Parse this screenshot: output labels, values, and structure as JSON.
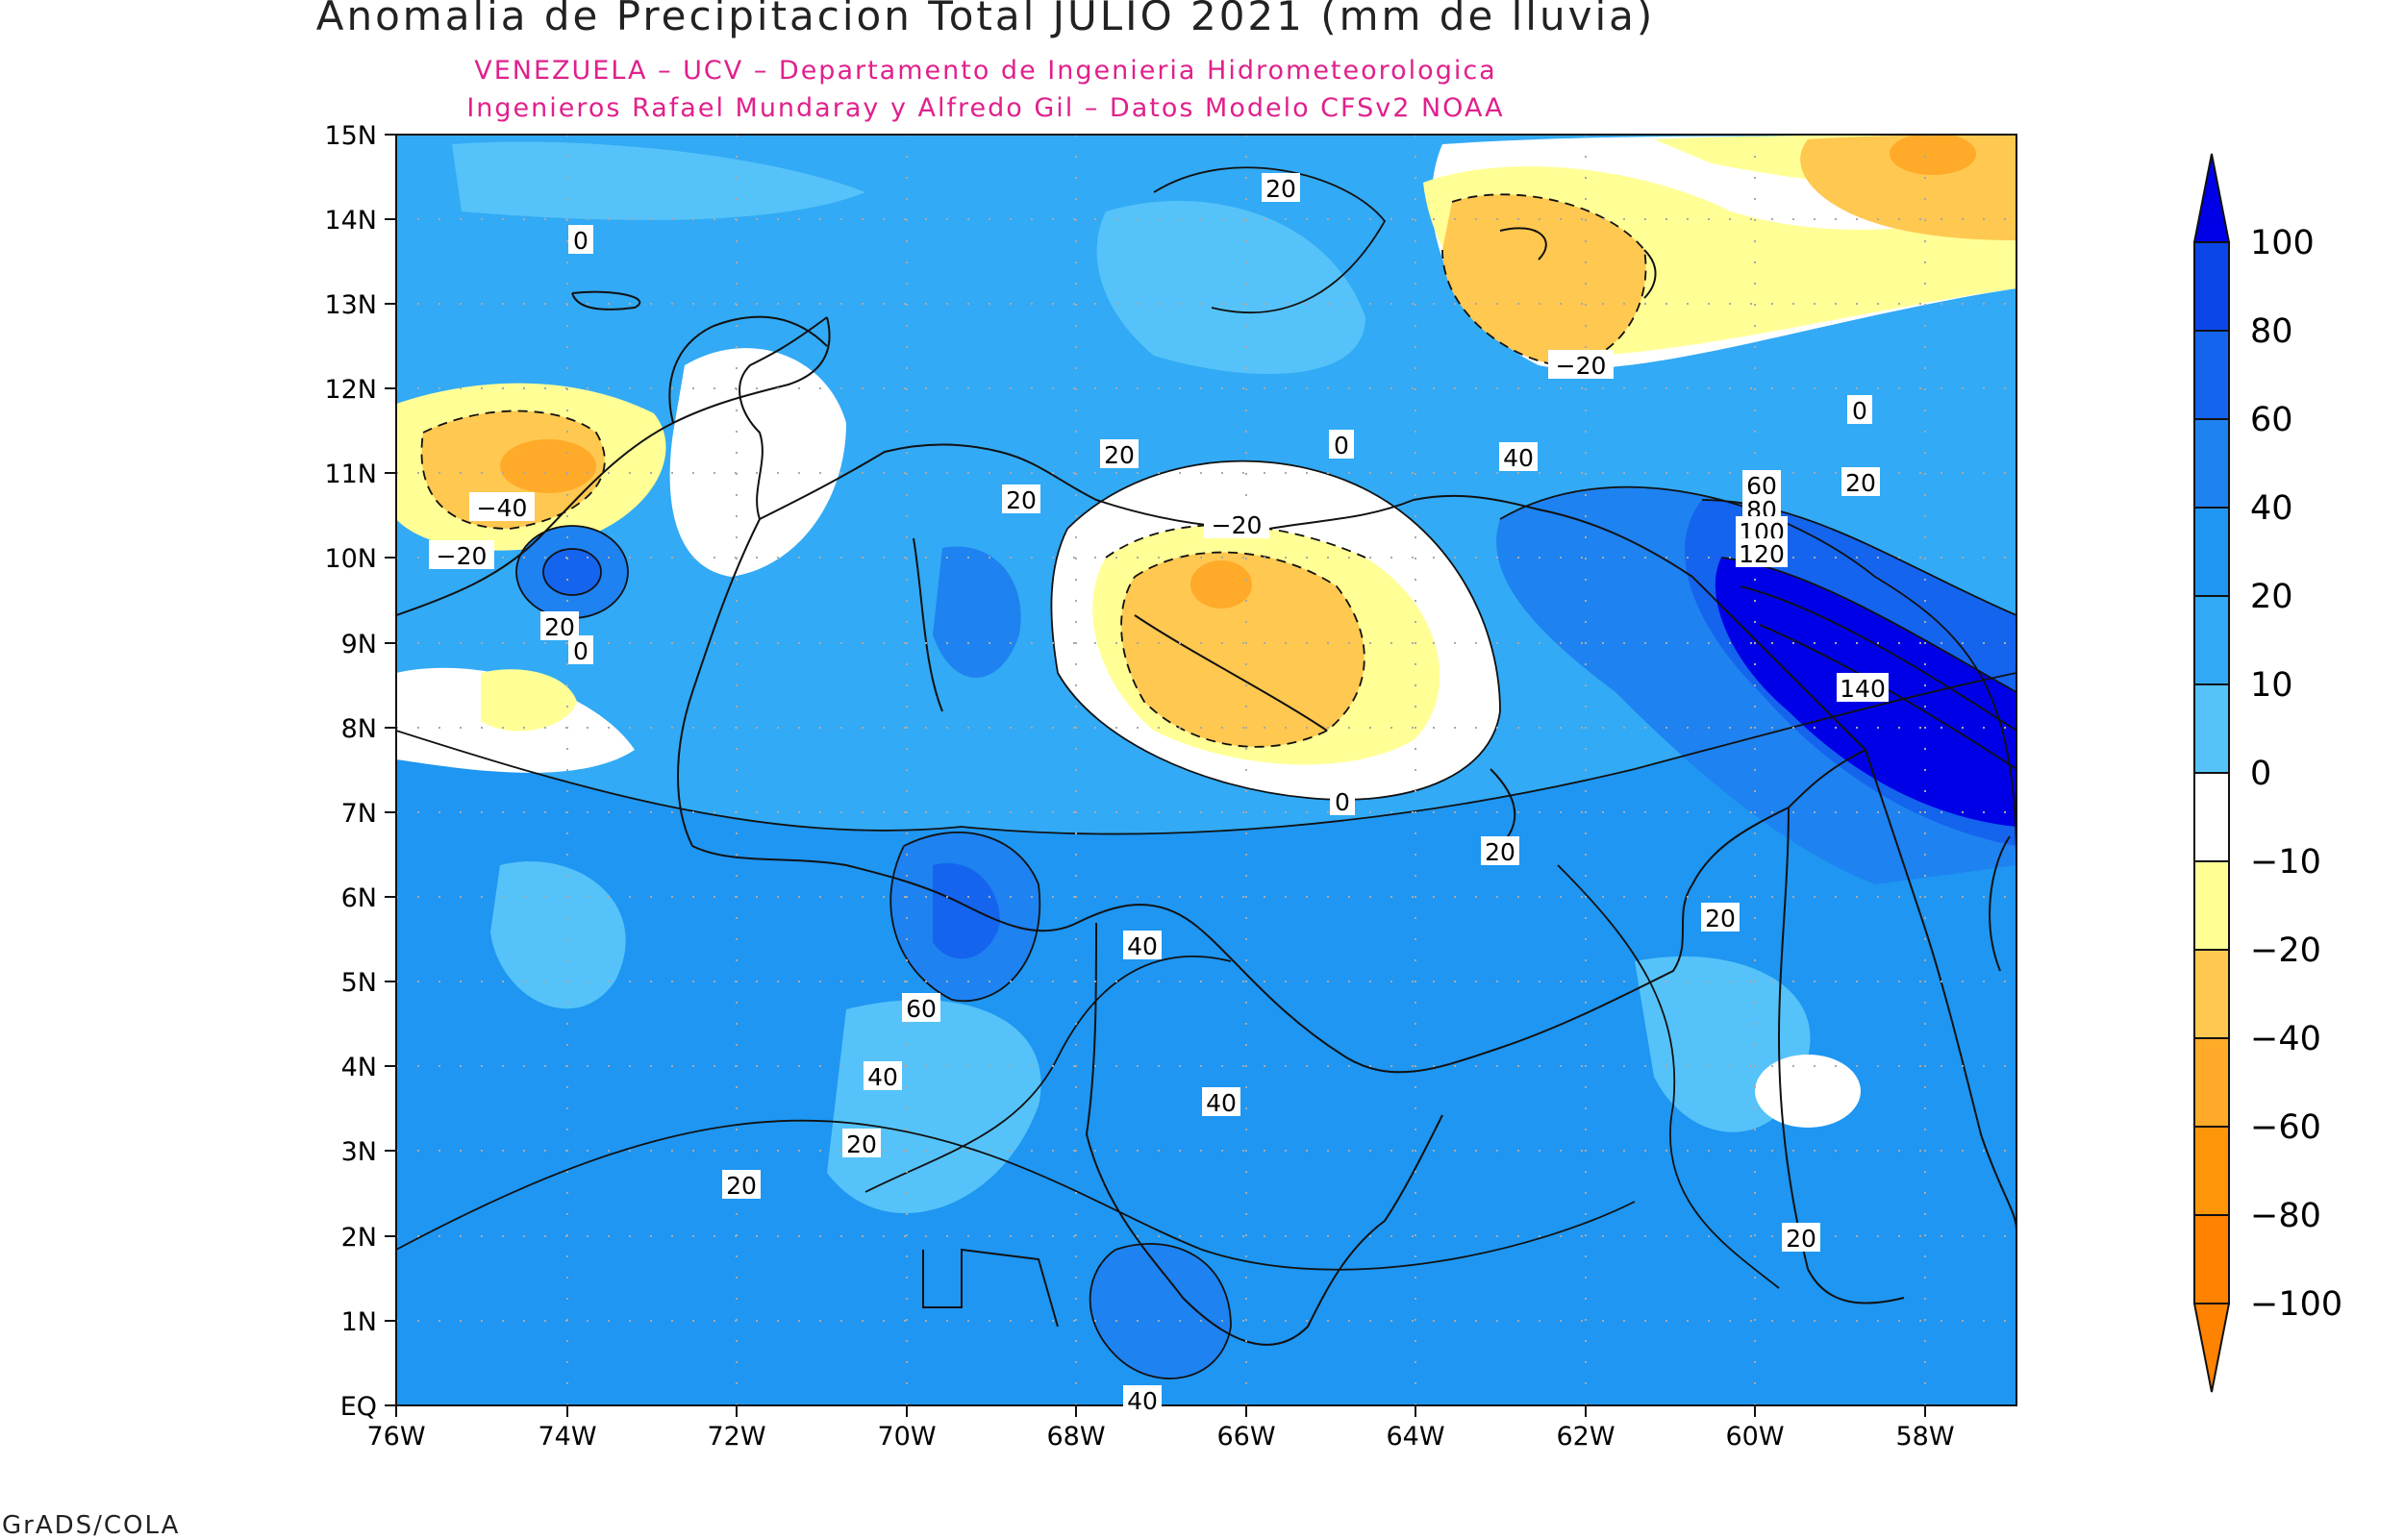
{
  "title": "Anomalia de Precipitacion Total JULIO 2021 (mm de lluvia)",
  "subtitle_line1": "VENEZUELA – UCV – Departamento de Ingenieria Hidrometeorologica",
  "subtitle_line2": "Ingenieros Rafael Mundaray y Alfredo Gil – Datos Modelo CFSv2 NOAA",
  "footer": "GrADS/COLA",
  "colors": {
    "subtitle": "#e0208c"
  },
  "map": {
    "lat_labels": [
      "15N",
      "14N",
      "13N",
      "12N",
      "11N",
      "10N",
      "9N",
      "8N",
      "7N",
      "6N",
      "5N",
      "4N",
      "3N",
      "2N",
      "1N",
      "EQ"
    ],
    "lon_labels": [
      "76W",
      "74W",
      "72W",
      "70W",
      "68W",
      "66W",
      "64W",
      "62W",
      "60W",
      "58W"
    ]
  },
  "colorbar": {
    "labels": [
      "100",
      "80",
      "60",
      "40",
      "20",
      "10",
      "0",
      "−10",
      "−20",
      "−40",
      "−60",
      "−80",
      "−100"
    ],
    "colors": [
      "#0000e6",
      "#0a46e8",
      "#1464ee",
      "#1e82f0",
      "#1e96f2",
      "#32aaf5",
      "#55c3f9",
      "#ffffff",
      "#ffff96",
      "#ffc850",
      "#ffaa28",
      "#ff960a",
      "#ff8200"
    ]
  },
  "contour_labels": [
    "20",
    "0",
    "0",
    "20",
    "−20",
    "0",
    "20",
    "40",
    "60",
    "80",
    "100",
    "120",
    "140",
    "20",
    "−40",
    "−20",
    "20",
    "0",
    "20",
    "−20",
    "0",
    "20",
    "20",
    "40",
    "60",
    "40",
    "20",
    "20",
    "40",
    "40",
    "20",
    "40",
    "20"
  ]
}
